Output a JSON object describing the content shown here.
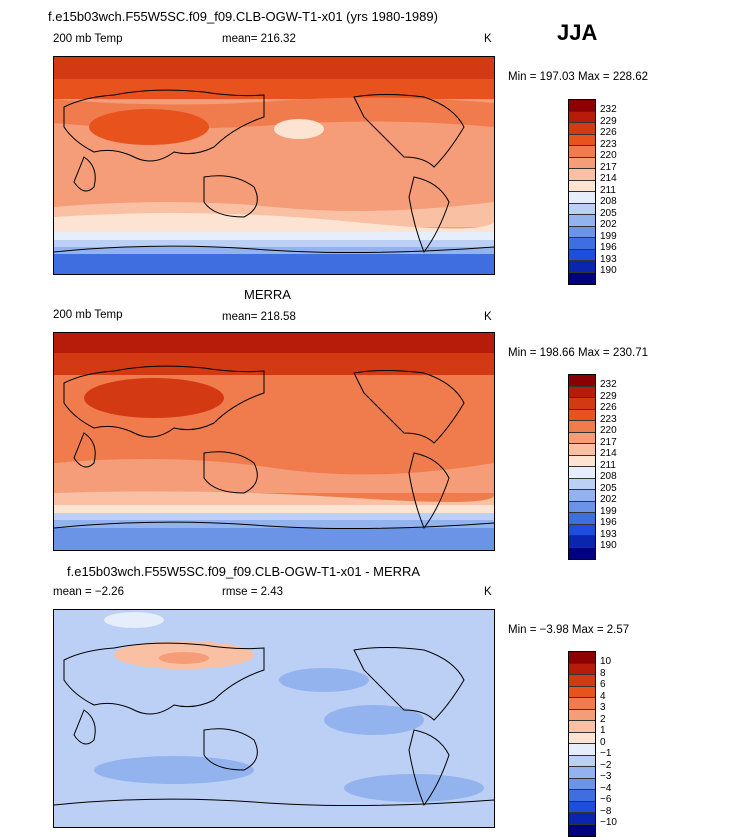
{
  "season": "JJA",
  "colors": {
    "abs_scale": [
      "#8b0000",
      "#b71c0a",
      "#d33a13",
      "#e8521c",
      "#f07c4e",
      "#f59c78",
      "#f9c0a4",
      "#fde3d2",
      "#e6eefc",
      "#bcd0f6",
      "#93b3ee",
      "#6b94e6",
      "#3f6ee0",
      "#1f4ede",
      "#0a26b0",
      "#000080"
    ],
    "diff_scale": [
      "#8b0000",
      "#b71c0a",
      "#d33a13",
      "#e8521c",
      "#f07c4e",
      "#f59c78",
      "#f9c0a4",
      "#fde3d2",
      "#e6eefc",
      "#bcd0f6",
      "#93b3ee",
      "#6b94e6",
      "#3f6ee0",
      "#1f4ede",
      "#0a26b0",
      "#000080"
    ]
  },
  "chart_data": [
    {
      "type": "heatmap",
      "title": "f.e15b03wch.F55W5SC.f09_f09.CLB-OGW-T1-x01 (yrs 1980-1989)",
      "left_label": "200 mb Temp",
      "mean_text": "mean= 216.32",
      "units": "K",
      "min_max": "Min = 197.03 Max = 228.62",
      "colorbar_labels": [
        "232",
        "229",
        "226",
        "223",
        "220",
        "217",
        "214",
        "211",
        "208",
        "205",
        "202",
        "199",
        "196",
        "193",
        "190"
      ]
    },
    {
      "type": "heatmap",
      "title": "MERRA",
      "left_label": "200 mb Temp",
      "mean_text": "mean= 218.58",
      "units": "K",
      "min_max": "Min = 198.66 Max = 230.71",
      "colorbar_labels": [
        "232",
        "229",
        "226",
        "223",
        "220",
        "217",
        "214",
        "211",
        "208",
        "205",
        "202",
        "199",
        "196",
        "193",
        "190"
      ]
    },
    {
      "type": "heatmap",
      "title": "f.e15b03wch.F55W5SC.f09_f09.CLB-OGW-T1-x01 - MERRA",
      "left_label": "mean =  −2.26",
      "mean_text": "rmse =   2.43",
      "units": "K",
      "min_max": "Min =  −3.98 Max =   2.57",
      "colorbar_labels": [
        "10",
        "8",
        "6",
        "4",
        "3",
        "2",
        "1",
        "0",
        "−1",
        "−2",
        "−3",
        "−4",
        "−6",
        "−8",
        "−10"
      ]
    }
  ]
}
